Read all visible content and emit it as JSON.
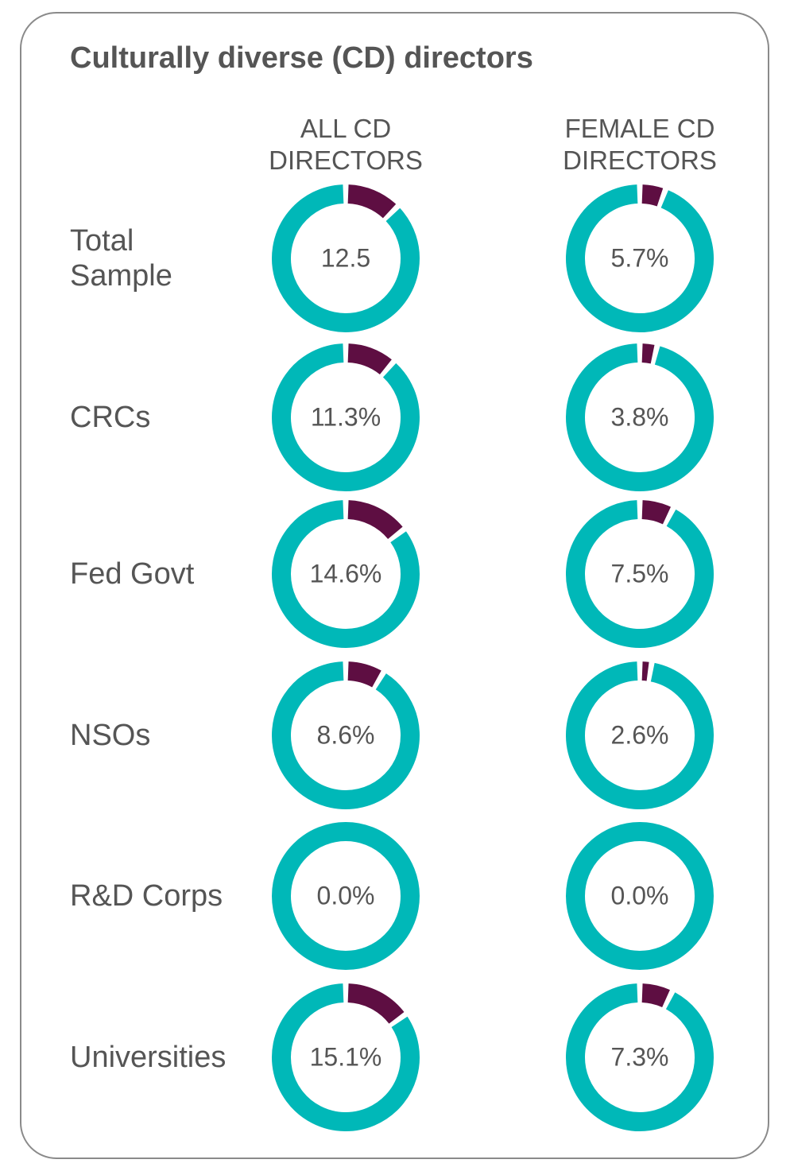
{
  "chart_data": {
    "type": "donut",
    "title": "Culturally diverse (CD) directors",
    "categories": [
      "Total Sample",
      "CRCs",
      "Fed Govt",
      "NSOs",
      "R&D Corps",
      "Universities"
    ],
    "track_color": "#00b8b8",
    "series": [
      {
        "name": "ALL CD DIRECTORS",
        "color": "#5e0e42",
        "values": [
          12.5,
          11.3,
          14.6,
          8.6,
          0.0,
          15.1
        ],
        "value_labels": [
          "12.5",
          "11.3%",
          "14.6%",
          "8.6%",
          "0.0%",
          "15.1%"
        ]
      },
      {
        "name": "FEMALE CD DIRECTORS",
        "color": "#5e0e42",
        "values": [
          5.7,
          3.8,
          7.5,
          2.6,
          0.0,
          7.3
        ],
        "value_labels": [
          "5.7%",
          "3.8%",
          "7.5%",
          "2.6%",
          "0.0%",
          "7.3%"
        ]
      }
    ]
  }
}
